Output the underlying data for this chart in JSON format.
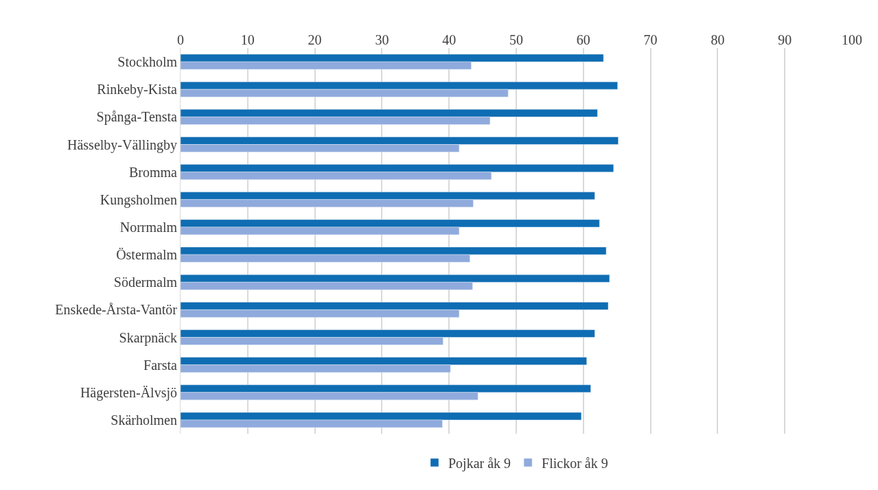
{
  "chart_data": {
    "type": "bar",
    "orientation": "horizontal",
    "categories": [
      "Stockholm",
      "Rinkeby-Kista",
      "Spånga-Tensta",
      "Hässelby-Vällingby",
      "Bromma",
      "Kungsholmen",
      "Norrmalm",
      "Östermalm",
      "Södermalm",
      "Enskede-Årsta-Vantör",
      "Skarpnäck",
      "Farsta",
      "Hägersten-Älvsjö",
      "Skärholmen"
    ],
    "series": [
      {
        "name": "Pojkar åk 9",
        "color": "#0f6db3",
        "values": [
          63.0,
          65.1,
          62.1,
          65.2,
          64.5,
          61.7,
          62.4,
          63.4,
          63.9,
          63.7,
          61.7,
          60.5,
          61.1,
          59.7
        ]
      },
      {
        "name": "Flickor åk 9",
        "color": "#8faadc",
        "values": [
          43.3,
          48.8,
          46.1,
          41.5,
          46.3,
          43.6,
          41.5,
          43.1,
          43.5,
          41.5,
          39.1,
          40.2,
          44.3,
          39.0
        ]
      }
    ],
    "xlim": [
      0,
      100
    ],
    "xticks": [
      0,
      10,
      20,
      30,
      40,
      50,
      60,
      70,
      80,
      90,
      100
    ],
    "grid": "x",
    "legend": "bottom"
  }
}
